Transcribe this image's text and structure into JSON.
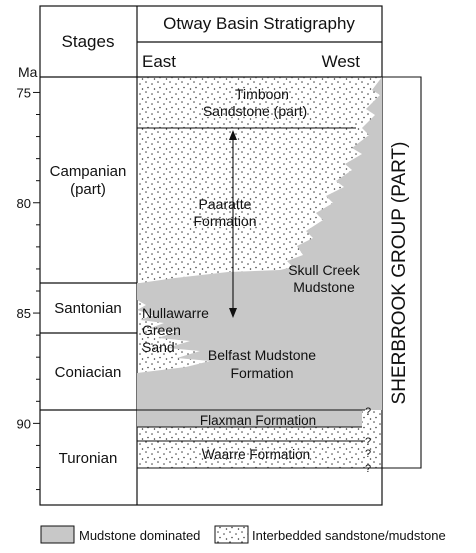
{
  "header": {
    "stages": "Stages",
    "title": "Otway Basin Stratigraphy",
    "east": "East",
    "west": "West",
    "axis_unit": "Ma"
  },
  "age_ticks": [
    {
      "value": 75,
      "label": "75"
    },
    {
      "value": 80,
      "label": "80"
    },
    {
      "value": 85,
      "label": "85"
    },
    {
      "value": 90,
      "label": "90"
    }
  ],
  "age_range": [
    74.3,
    93.7
  ],
  "stages": [
    {
      "name": "Campanian",
      "qualifier": "(part)"
    },
    {
      "name": "Santonian",
      "qualifier": ""
    },
    {
      "name": "Coniacian",
      "qualifier": ""
    },
    {
      "name": "Turonian",
      "qualifier": ""
    }
  ],
  "formations": {
    "timboon": [
      "Timboon",
      "Sandstone (part)"
    ],
    "paaratte": [
      "Paaratte",
      "Formation"
    ],
    "skull_creek": [
      "Skull Creek",
      "Mudstone"
    ],
    "nullawarre": [
      "Nullawarre",
      "Green",
      "Sand"
    ],
    "belfast": [
      "Belfast Mudstone",
      "Formation"
    ],
    "flaxman": "Flaxman Formation",
    "waarre": "Waarre Formation"
  },
  "group_label": "SHERBROOK GROUP (PART)",
  "uncertain_marks": [
    "?",
    "?",
    "?",
    "?"
  ],
  "legend": {
    "mudstone": "Mudstone dominated",
    "interbedded": "Interbedded sandstone/mudstone"
  },
  "colors": {
    "mudstone_fill": "#c8c8c8",
    "sand_fill": "#ffffff",
    "line": "#111111"
  }
}
